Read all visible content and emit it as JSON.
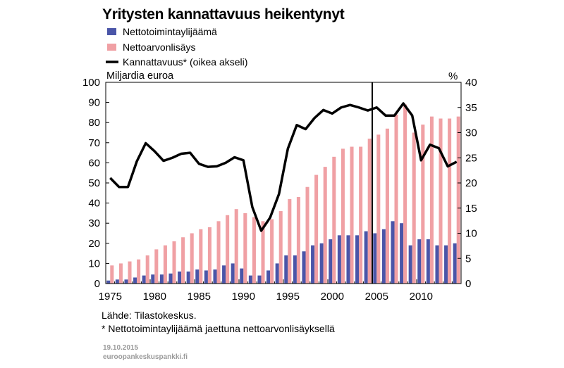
{
  "chart_data": {
    "type": "bar",
    "title": "Yritysten kannattavuus heikentynyt",
    "ylabel_left": "Miljardia euroa",
    "ylabel_right": "%",
    "ylim_left": [
      0,
      100
    ],
    "ylim_right": [
      0,
      40
    ],
    "yticks_left": [
      "0",
      "10",
      "20",
      "30",
      "40",
      "50",
      "60",
      "70",
      "80",
      "90",
      "100"
    ],
    "yticks_right": [
      "0",
      "5",
      "10",
      "15",
      "20",
      "25",
      "30",
      "35",
      "40"
    ],
    "xticks": [
      "1975",
      "1980",
      "1985",
      "1990",
      "1995",
      "2000",
      "2005",
      "2010"
    ],
    "x": [
      1975,
      1976,
      1977,
      1978,
      1979,
      1980,
      1981,
      1982,
      1983,
      1984,
      1985,
      1986,
      1987,
      1988,
      1989,
      1990,
      1991,
      1992,
      1993,
      1994,
      1995,
      1996,
      1997,
      1998,
      1999,
      2000,
      2001,
      2002,
      2003,
      2004,
      2005,
      2006,
      2007,
      2008,
      2009,
      2010,
      2011,
      2012,
      2013,
      2014
    ],
    "vertical_line_at": 2004,
    "series": [
      {
        "name": "Nettotoimintaylijäämä",
        "type": "bar",
        "color": "#4a55a8",
        "values": [
          1.5,
          2,
          2,
          3,
          4,
          4.5,
          4.5,
          5,
          6,
          6,
          7,
          6.5,
          7,
          9,
          10,
          7.5,
          4,
          4,
          6.5,
          10,
          14,
          14,
          16,
          19,
          20,
          22,
          24,
          24,
          24,
          26,
          25,
          27,
          31,
          30,
          19,
          22,
          22,
          19,
          19,
          20
        ]
      },
      {
        "name": "Nettoarvonlisäys",
        "type": "bar",
        "color": "#f0a0a4",
        "values": [
          9,
          10,
          11,
          12,
          14,
          17,
          19,
          21,
          23,
          25,
          27,
          28,
          31,
          34,
          37,
          35,
          33,
          31,
          32,
          36,
          42,
          43,
          48,
          54,
          58,
          63,
          67,
          68,
          68,
          72,
          74,
          77,
          84,
          89,
          75,
          79,
          83,
          82,
          82,
          83
        ]
      },
      {
        "name": "Kannattavuus*  (oikea akseli)",
        "type": "line",
        "axis": "right",
        "color": "#000000",
        "values": [
          21,
          19.2,
          19.2,
          24.3,
          27.9,
          26.3,
          24.4,
          25,
          25.8,
          26,
          23.8,
          23.2,
          23.3,
          24,
          25.1,
          24.5,
          15.2,
          10.5,
          13.1,
          17.8,
          26.8,
          31.5,
          30.7,
          32.9,
          34.5,
          33.8,
          35,
          35.5,
          35,
          34.4,
          35,
          33.4,
          33.4,
          35.8,
          33.4,
          24.5,
          27.6,
          26.9,
          23.3,
          24.2
        ]
      }
    ]
  },
  "footer": {
    "source": "Lähde: Tilastokeskus.",
    "note": "* Nettotoimintaylijäämä jaettuna nettoarvonlisäyksellä",
    "date": "19.10.2015",
    "site": "euroopankeskuspankki.fi"
  }
}
